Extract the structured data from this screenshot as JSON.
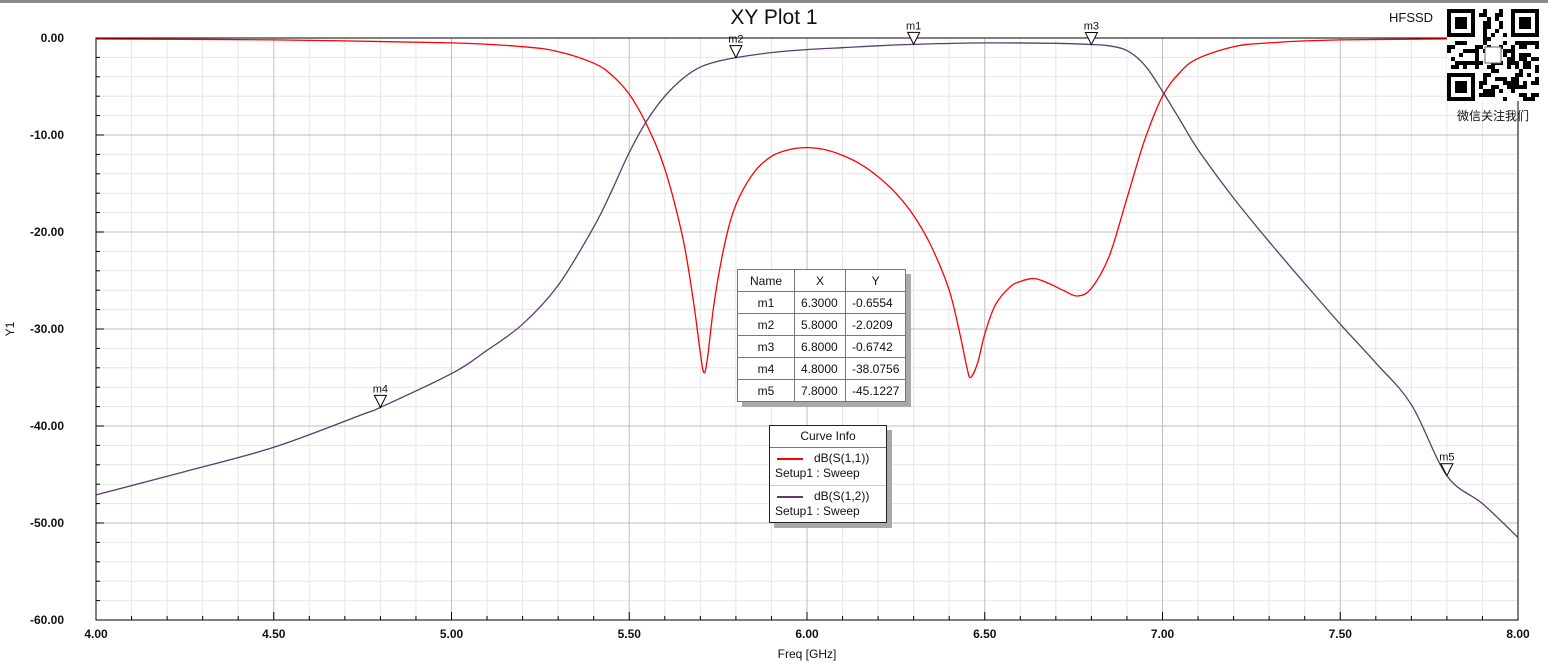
{
  "title": "XY Plot 1",
  "brand_tag": "HFSSD",
  "qr_caption": "微信关注我们",
  "chart_data": {
    "type": "line",
    "title": "XY Plot 1",
    "xlabel": "Freq [GHz]",
    "ylabel": "Y1",
    "xlim": [
      4.0,
      8.0
    ],
    "ylim": [
      -60,
      0
    ],
    "x_ticks": [
      "4.00",
      "4.50",
      "5.00",
      "5.50",
      "6.00",
      "6.50",
      "7.00",
      "7.50",
      "8.00"
    ],
    "y_ticks": [
      "0.00",
      "-10.00",
      "-20.00",
      "-30.00",
      "-40.00",
      "-50.00",
      "-60.00"
    ],
    "grid": true,
    "series": [
      {
        "name": "dB(S(1,1))",
        "sub": "Setup1 : Sweep",
        "color": "#ff0000",
        "points": [
          [
            4.0,
            -0.1
          ],
          [
            4.5,
            -0.2
          ],
          [
            5.0,
            -0.5
          ],
          [
            5.2,
            -0.9
          ],
          [
            5.3,
            -1.4
          ],
          [
            5.4,
            -2.6
          ],
          [
            5.45,
            -3.8
          ],
          [
            5.5,
            -5.8
          ],
          [
            5.55,
            -9.0
          ],
          [
            5.6,
            -13.5
          ],
          [
            5.65,
            -20.5
          ],
          [
            5.68,
            -27.0
          ],
          [
            5.7,
            -32.5
          ],
          [
            5.71,
            -34.5
          ],
          [
            5.72,
            -33.0
          ],
          [
            5.74,
            -27.0
          ],
          [
            5.77,
            -21.0
          ],
          [
            5.8,
            -17.2
          ],
          [
            5.85,
            -13.9
          ],
          [
            5.9,
            -12.2
          ],
          [
            5.95,
            -11.5
          ],
          [
            6.0,
            -11.3
          ],
          [
            6.05,
            -11.5
          ],
          [
            6.1,
            -12.1
          ],
          [
            6.15,
            -13.0
          ],
          [
            6.2,
            -14.3
          ],
          [
            6.25,
            -16.0
          ],
          [
            6.3,
            -18.3
          ],
          [
            6.35,
            -21.5
          ],
          [
            6.4,
            -26.0
          ],
          [
            6.43,
            -30.5
          ],
          [
            6.45,
            -34.0
          ],
          [
            6.46,
            -35.0
          ],
          [
            6.48,
            -33.5
          ],
          [
            6.5,
            -30.5
          ],
          [
            6.53,
            -27.5
          ],
          [
            6.57,
            -25.7
          ],
          [
            6.6,
            -25.1
          ],
          [
            6.64,
            -24.8
          ],
          [
            6.68,
            -25.3
          ],
          [
            6.72,
            -26.0
          ],
          [
            6.76,
            -26.6
          ],
          [
            6.8,
            -25.8
          ],
          [
            6.85,
            -22.5
          ],
          [
            6.9,
            -16.5
          ],
          [
            6.95,
            -10.5
          ],
          [
            7.0,
            -6.0
          ],
          [
            7.05,
            -3.5
          ],
          [
            7.1,
            -2.1
          ],
          [
            7.2,
            -0.9
          ],
          [
            7.3,
            -0.5
          ],
          [
            7.5,
            -0.2
          ],
          [
            8.0,
            -0.05
          ]
        ]
      },
      {
        "name": "dB(S(1,2))",
        "sub": "Setup1 : Sweep",
        "color": "#5a3c6e",
        "points": [
          [
            4.0,
            -47.1
          ],
          [
            4.25,
            -44.7
          ],
          [
            4.5,
            -42.2
          ],
          [
            4.75,
            -38.8
          ],
          [
            4.8,
            -38.08
          ],
          [
            5.0,
            -34.6
          ],
          [
            5.1,
            -32.2
          ],
          [
            5.2,
            -29.5
          ],
          [
            5.3,
            -25.5
          ],
          [
            5.4,
            -19.5
          ],
          [
            5.45,
            -15.8
          ],
          [
            5.5,
            -11.8
          ],
          [
            5.55,
            -8.5
          ],
          [
            5.6,
            -6.0
          ],
          [
            5.65,
            -4.2
          ],
          [
            5.7,
            -3.0
          ],
          [
            5.75,
            -2.4
          ],
          [
            5.8,
            -2.02
          ],
          [
            5.9,
            -1.5
          ],
          [
            6.0,
            -1.2
          ],
          [
            6.1,
            -1.0
          ],
          [
            6.2,
            -0.8
          ],
          [
            6.3,
            -0.66
          ],
          [
            6.5,
            -0.5
          ],
          [
            6.7,
            -0.55
          ],
          [
            6.8,
            -0.67
          ],
          [
            6.85,
            -0.8
          ],
          [
            6.9,
            -1.3
          ],
          [
            6.95,
            -2.8
          ],
          [
            7.0,
            -5.5
          ],
          [
            7.05,
            -8.5
          ],
          [
            7.1,
            -11.5
          ],
          [
            7.2,
            -16.5
          ],
          [
            7.3,
            -21.0
          ],
          [
            7.4,
            -25.3
          ],
          [
            7.5,
            -29.5
          ],
          [
            7.6,
            -33.5
          ],
          [
            7.7,
            -37.8
          ],
          [
            7.8,
            -45.12
          ],
          [
            7.9,
            -48.0
          ],
          [
            8.0,
            -51.5
          ]
        ]
      }
    ],
    "markers": [
      {
        "name": "m1",
        "x": "6.3000",
        "y": "-0.6554",
        "fx": 6.3,
        "fy": -0.6554
      },
      {
        "name": "m2",
        "x": "5.8000",
        "y": "-2.0209",
        "fx": 5.8,
        "fy": -2.0209
      },
      {
        "name": "m3",
        "x": "6.8000",
        "y": "-0.6742",
        "fx": 6.8,
        "fy": -0.6742
      },
      {
        "name": "m4",
        "x": "4.8000",
        "y": "-38.0756",
        "fx": 4.8,
        "fy": -38.0756
      },
      {
        "name": "m5",
        "x": "7.8000",
        "y": "-45.1227",
        "fx": 7.8,
        "fy": -45.1227
      }
    ],
    "marker_table": {
      "headers": [
        "Name",
        "X",
        "Y"
      ]
    },
    "legend": {
      "title": "Curve Info",
      "placement": "center"
    }
  }
}
